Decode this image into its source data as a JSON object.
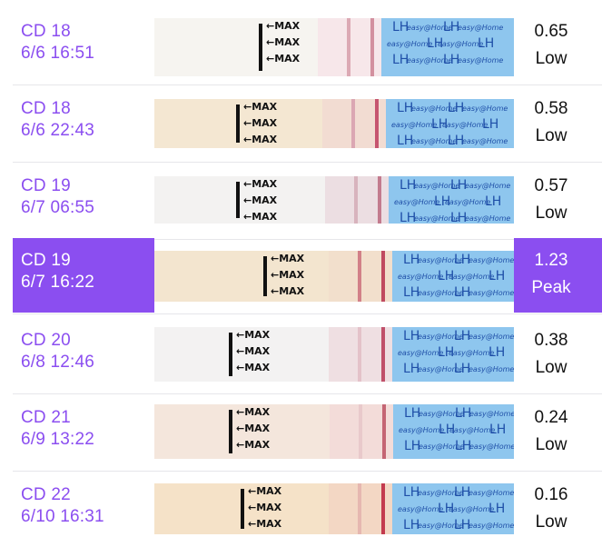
{
  "strip_labels": {
    "max": "MAX",
    "brand": "easy@Home",
    "lh": "LH"
  },
  "colors": {
    "accent": "#8b4ef0",
    "text": "#111111"
  },
  "tests": [
    {
      "cd": "CD 18",
      "datetime": "6/6 16:51",
      "value": "0.65",
      "level": "Low",
      "selected": false
    },
    {
      "cd": "CD 18",
      "datetime": "6/6 22:43",
      "value": "0.58",
      "level": "Low",
      "selected": false
    },
    {
      "cd": "CD 19",
      "datetime": "6/7 06:55",
      "value": "0.57",
      "level": "Low",
      "selected": false
    },
    {
      "cd": "CD 19",
      "datetime": "6/7 16:22",
      "value": "1.23",
      "level": "Peak",
      "selected": true
    },
    {
      "cd": "CD 20",
      "datetime": "6/8 12:46",
      "value": "0.38",
      "level": "Low",
      "selected": false
    },
    {
      "cd": "CD 21",
      "datetime": "6/9 13:22",
      "value": "0.24",
      "level": "Low",
      "selected": false
    },
    {
      "cd": "CD 22",
      "datetime": "6/10 16:31",
      "value": "0.16",
      "level": "Low",
      "selected": false
    }
  ]
}
